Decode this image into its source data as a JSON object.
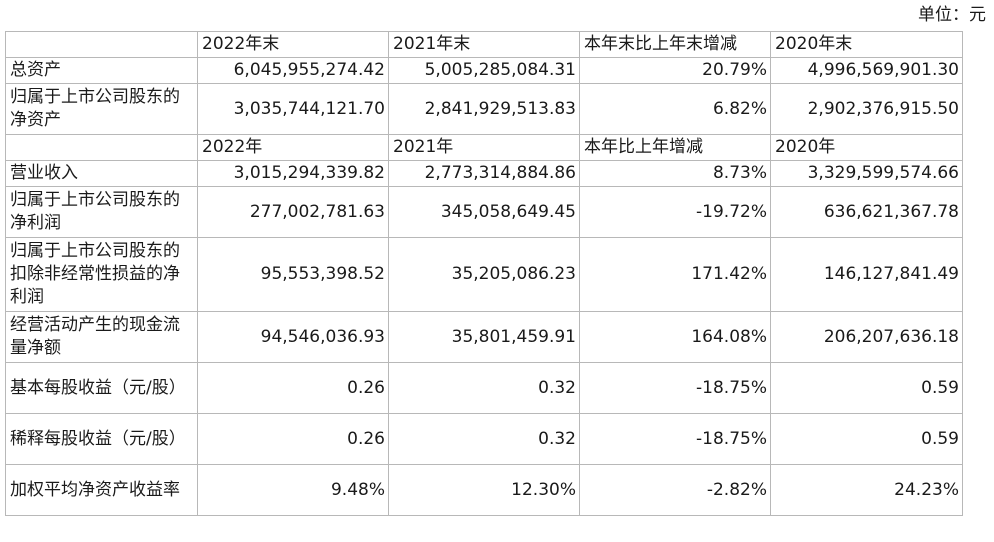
{
  "unit_label": "单位：元",
  "header_balance": [
    "",
    "2022年末",
    "2021年末",
    "本年末比上年末增减",
    "2020年末"
  ],
  "header_income": [
    "",
    "2022年",
    "2021年",
    "本年比上年增减",
    "2020年"
  ],
  "balance_rows": [
    {
      "label": "总资产",
      "values": [
        "6,045,955,274.42",
        "5,005,285,084.31",
        "20.79%",
        "4,996,569,901.30"
      ]
    },
    {
      "label": "归属于上市公司股东的净资产",
      "values": [
        "3,035,744,121.70",
        "2,841,929,513.83",
        "6.82%",
        "2,902,376,915.50"
      ]
    }
  ],
  "income_rows": [
    {
      "label": "营业收入",
      "values": [
        "3,015,294,339.82",
        "2,773,314,884.86",
        "8.73%",
        "3,329,599,574.66"
      ]
    },
    {
      "label": "归属于上市公司股东的净利润",
      "values": [
        "277,002,781.63",
        "345,058,649.45",
        "-19.72%",
        "636,621,367.78"
      ]
    },
    {
      "label": "归属于上市公司股东的扣除非经常性损益的净利润",
      "values": [
        "95,553,398.52",
        "35,205,086.23",
        "171.42%",
        "146,127,841.49"
      ]
    },
    {
      "label": "经营活动产生的现金流量净额",
      "values": [
        "94,546,036.93",
        "35,801,459.91",
        "164.08%",
        "206,207,636.18"
      ]
    },
    {
      "label": "基本每股收益（元/股）",
      "values": [
        "0.26",
        "0.32",
        "-18.75%",
        "0.59"
      ]
    },
    {
      "label": "稀释每股收益（元/股）",
      "values": [
        "0.26",
        "0.32",
        "-18.75%",
        "0.59"
      ]
    },
    {
      "label": "加权平均净资产收益率",
      "values": [
        "9.48%",
        "12.30%",
        "-2.82%",
        "24.23%"
      ]
    }
  ]
}
